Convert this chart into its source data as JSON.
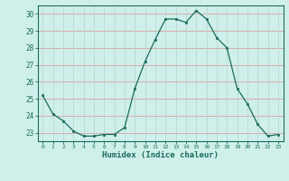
{
  "x": [
    0,
    1,
    2,
    3,
    4,
    5,
    6,
    7,
    8,
    9,
    10,
    11,
    12,
    13,
    14,
    15,
    16,
    17,
    18,
    19,
    20,
    21,
    22,
    23
  ],
  "y": [
    25.2,
    24.1,
    23.7,
    23.1,
    22.8,
    22.8,
    22.9,
    22.9,
    23.3,
    25.6,
    27.2,
    28.5,
    29.7,
    29.7,
    29.5,
    30.2,
    29.7,
    28.6,
    28.0,
    25.6,
    24.7,
    23.5,
    22.8,
    22.9
  ],
  "line_color": "#1a6b5a",
  "marker_color": "#1a6b5a",
  "bg_color": "#cff0ea",
  "grid_color_h": "#d8a0a0",
  "grid_color_v": "#b8d8d4",
  "xlabel": "Humidex (Indice chaleur)",
  "ylim": [
    22.5,
    30.5
  ],
  "yticks": [
    23,
    24,
    25,
    26,
    27,
    28,
    29,
    30
  ],
  "xlim": [
    -0.5,
    23.5
  ],
  "xticks": [
    0,
    1,
    2,
    3,
    4,
    5,
    6,
    7,
    8,
    9,
    10,
    11,
    12,
    13,
    14,
    15,
    16,
    17,
    18,
    19,
    20,
    21,
    22,
    23
  ]
}
